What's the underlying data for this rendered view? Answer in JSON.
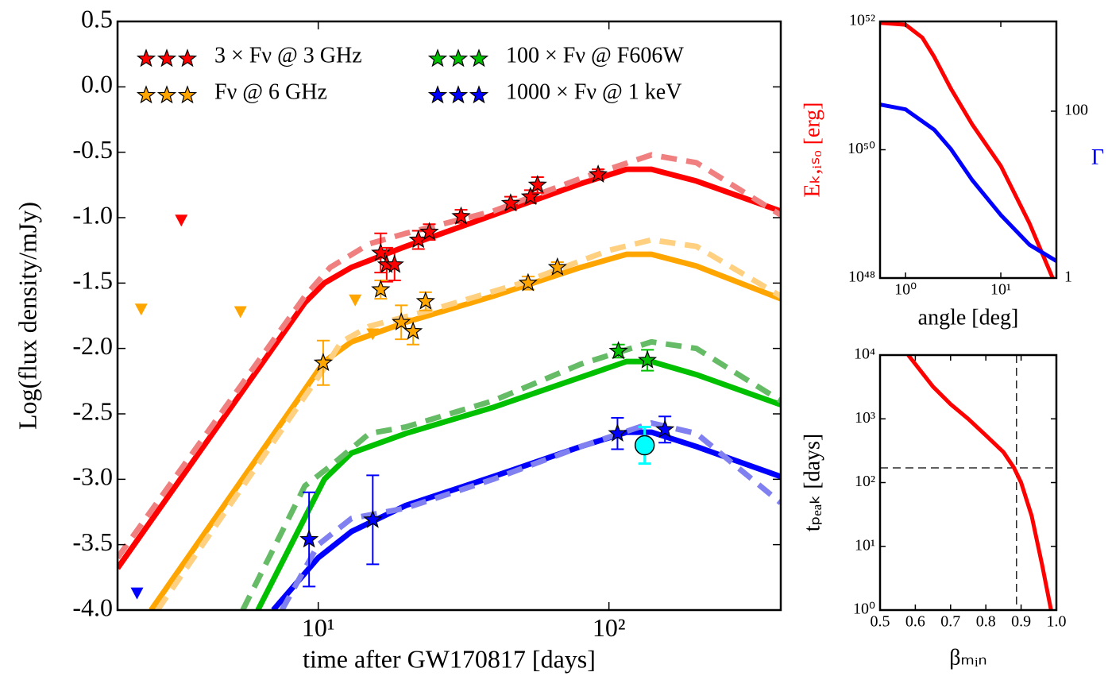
{
  "chart_data": [
    {
      "type": "line",
      "xscale": "log",
      "xlabel": "time after GW170817 [days]",
      "ylabel": "Log(flux density/mJy)",
      "xlim": [
        2.04,
        390
      ],
      "ylim": [
        -4.0,
        0.5
      ],
      "xticks": [
        {
          "value": 10,
          "label": "10¹"
        },
        {
          "value": 100,
          "label": "10²"
        }
      ],
      "yticks": [
        0.5,
        {
          "value": 0,
          "label": "0.0"
        },
        -0.5,
        {
          "value": -1,
          "label": "-1.0"
        },
        -1.5,
        {
          "value": -2,
          "label": "-2.0"
        },
        -2.5,
        {
          "value": -3,
          "label": "-3.0"
        },
        -3.5,
        {
          "value": -4,
          "label": "-4.0"
        }
      ],
      "models": [
        {
          "color": "#ff0000",
          "style": "solid",
          "x": [
            2.04,
            9,
            10.5,
            13,
            20,
            40,
            80,
            115,
            140,
            200,
            390
          ],
          "values": [
            -3.68,
            -1.65,
            -1.5,
            -1.38,
            -1.22,
            -0.98,
            -0.74,
            -0.63,
            -0.63,
            -0.72,
            -0.95
          ]
        },
        {
          "color": "#f08080",
          "style": "dashed",
          "x": [
            2.04,
            9,
            11,
            15,
            20,
            40,
            80,
            140,
            200,
            390
          ],
          "values": [
            -3.6,
            -1.6,
            -1.38,
            -1.2,
            -1.12,
            -0.95,
            -0.7,
            -0.52,
            -0.58,
            -0.98
          ]
        },
        {
          "color": "#ffa500",
          "style": "solid",
          "x": [
            2.66,
            10.5,
            13,
            20,
            40,
            80,
            115,
            140,
            200,
            390
          ],
          "values": [
            -4.0,
            -2.1,
            -1.95,
            -1.8,
            -1.6,
            -1.38,
            -1.28,
            -1.28,
            -1.37,
            -1.62
          ]
        },
        {
          "color": "#ffd080",
          "style": "dashed",
          "x": [
            2.8,
            10.5,
            12,
            15,
            25,
            50,
            100,
            140,
            200,
            390
          ],
          "values": [
            -4.0,
            -2.15,
            -1.95,
            -1.83,
            -1.7,
            -1.5,
            -1.25,
            -1.17,
            -1.22,
            -1.6
          ]
        },
        {
          "color": "#00c000",
          "style": "solid",
          "x": [
            6.2,
            10.5,
            13,
            20,
            40,
            80,
            115,
            140,
            200,
            390
          ],
          "values": [
            -4.0,
            -3.0,
            -2.8,
            -2.65,
            -2.45,
            -2.22,
            -2.1,
            -2.1,
            -2.2,
            -2.43
          ]
        },
        {
          "color": "#66bb66",
          "style": "dashed",
          "x": [
            5.5,
            9,
            11,
            15,
            20,
            40,
            80,
            140,
            200,
            390
          ],
          "values": [
            -4.0,
            -3.05,
            -2.9,
            -2.65,
            -2.6,
            -2.4,
            -2.12,
            -1.95,
            -2.0,
            -2.4
          ]
        },
        {
          "color": "#0000ff",
          "style": "solid",
          "x": [
            7,
            10,
            13,
            20,
            40,
            80,
            115,
            140,
            200,
            390
          ],
          "values": [
            -4.0,
            -3.6,
            -3.4,
            -3.2,
            -2.98,
            -2.75,
            -2.64,
            -2.64,
            -2.75,
            -2.98
          ]
        },
        {
          "color": "#8080f0",
          "style": "dashed",
          "x": [
            7.5,
            10,
            13,
            20,
            40,
            80,
            140,
            200,
            390
          ],
          "values": [
            -4.0,
            -3.5,
            -3.3,
            -3.22,
            -3.0,
            -2.75,
            -2.57,
            -2.65,
            -3.18
          ]
        }
      ],
      "series": [
        {
          "name": "3 × Fν @ 3 GHz",
          "color": "#ff0000",
          "x": [
            16.4,
            17.2,
            18.3,
            22.1,
            24.1,
            31.0,
            45.9,
            53.7,
            56.8,
            91.8
          ],
          "values": [
            -1.27,
            -1.36,
            -1.36,
            -1.17,
            -1.11,
            -0.99,
            -0.89,
            -0.84,
            -0.75,
            -0.67
          ],
          "errors": [
            0.15,
            0.13,
            0.12,
            0.07,
            0.06,
            0.05,
            0.05,
            0.05,
            0.06,
            0.04
          ]
        },
        {
          "name": "Fν @ 6 GHz",
          "color": "#ffa500",
          "x": [
            10.4,
            16.4,
            19.3,
            21.2,
            23.4,
            52.7,
            66.5
          ],
          "values": [
            -2.11,
            -1.55,
            -1.8,
            -1.87,
            -1.64,
            -1.5,
            -1.38
          ],
          "errors": [
            0.17,
            0.07,
            0.13,
            0.1,
            0.07,
            0.05,
            0.04
          ]
        },
        {
          "name": "100 × Fν @ F606W",
          "color": "#00c000",
          "x": [
            107.8,
            135.6
          ],
          "values": [
            -2.02,
            -2.09
          ],
          "errors": [
            0.05,
            0.08
          ]
        },
        {
          "name": "1000 × Fν @ 1 keV",
          "color": "#0000ff",
          "x": [
            9.3,
            15.4,
            107,
            155.8
          ],
          "values": [
            -3.46,
            -3.31,
            -2.65,
            -2.62
          ],
          "errors": [
            0.36,
            0.34,
            0.12,
            0.1
          ]
        }
      ],
      "upper_limits": [
        {
          "color": "#ff0000",
          "x": [
            3.38
          ],
          "values": [
            -1.02
          ]
        },
        {
          "color": "#ffa500",
          "x": [
            2.46,
            5.4,
            13.4,
            15.4
          ],
          "values": [
            -1.7,
            -1.72,
            -1.63,
            -1.89
          ]
        },
        {
          "color": "#0000ff",
          "x": [
            2.38
          ],
          "values": [
            -3.87
          ]
        }
      ],
      "circles": [
        {
          "color": "#00ffff",
          "x": [
            132.7
          ],
          "values": [
            -2.74
          ],
          "errors": [
            0.14
          ]
        }
      ]
    },
    {
      "type": "line",
      "xscale": "log",
      "yscale": "log",
      "y2scale": "log",
      "xlabel": "angle [deg]",
      "ylabel": "Eₖ,ᵢₛₒ [erg]",
      "ylabel_color": "#ff0000",
      "y2label": "Γ",
      "y2label_color": "#0000ff",
      "xlim": [
        0.54,
        38.3
      ],
      "ylim": [
        1e+48,
        1e+52
      ],
      "y2lim": [
        1,
        1190
      ],
      "xticks": [
        {
          "value": 1,
          "label": "10⁰"
        },
        {
          "value": 10,
          "label": "10¹"
        }
      ],
      "yticks": [
        {
          "value": 1e+48,
          "label": "10⁴⁸"
        },
        {
          "value": 1e+50,
          "label": "10⁵⁰"
        },
        {
          "value": 1e+52,
          "label": "10⁵²"
        }
      ],
      "y2ticks": [
        1,
        100
      ],
      "series": [
        {
          "color": "#ff0000",
          "x": [
            0.54,
            1,
            1.5,
            2,
            3,
            5,
            10,
            20,
            35
          ],
          "values": [
            9.5e+51,
            8.9e+51,
            5.6e+51,
            2.8e+51,
            8.9e+50,
            2.5e+50,
            5.6e+49,
            7.1e+48,
            1e+48
          ]
        },
        {
          "color": "#0000ff",
          "axis": "y2",
          "x": [
            0.54,
            1,
            2,
            3,
            5,
            10,
            20,
            38.3
          ],
          "values": [
            120,
            105,
            60,
            35,
            15,
            5.7,
            2.5,
            1.6
          ]
        }
      ]
    },
    {
      "type": "line",
      "yscale": "log",
      "xlabel": "βₘᵢₙ",
      "ylabel": "tₚₑₐₖ [days]",
      "xlim": [
        0.5,
        1.0
      ],
      "ylim": [
        1,
        10000
      ],
      "xticks": [
        0.5,
        0.6,
        0.7,
        0.8,
        0.9,
        {
          "value": 1,
          "label": "1.0"
        }
      ],
      "yticks": [
        {
          "value": 1,
          "label": "10⁰"
        },
        {
          "value": 10,
          "label": "10¹"
        },
        {
          "value": 100,
          "label": "10²"
        },
        {
          "value": 1000,
          "label": "10³"
        },
        {
          "value": 10000,
          "label": "10⁴"
        }
      ],
      "guides": {
        "x": 0.887,
        "y": 170
      },
      "series": [
        {
          "color": "#ff0000",
          "x": [
            0.58,
            0.65,
            0.7,
            0.75,
            0.8,
            0.85,
            0.88,
            0.9,
            0.93,
            0.96,
            0.985
          ],
          "values": [
            10000,
            3200,
            1700,
            1000,
            550,
            300,
            170,
            100,
            30,
            5,
            1
          ]
        }
      ]
    }
  ]
}
